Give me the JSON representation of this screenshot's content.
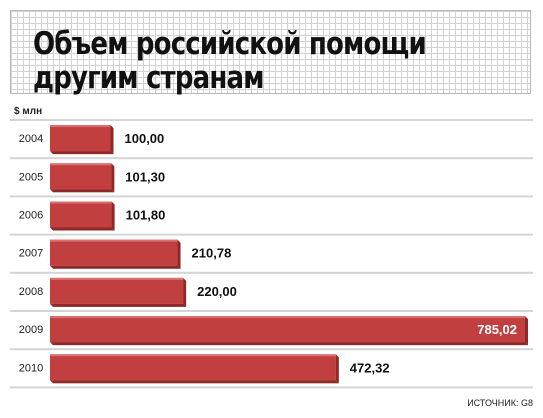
{
  "title_line1": "Объем российской помощи",
  "title_line2": "другим странам",
  "unit": "$ млн",
  "source": "ИСТОЧНИК: G8",
  "colors": {
    "bar": "#c1403f",
    "bar_top": "#d9706f",
    "bar_side": "#8f2826",
    "shadow": "#b3b3b3",
    "row_band": "#d4d4d4"
  },
  "chart_data": {
    "type": "bar",
    "orientation": "horizontal",
    "categories": [
      "2004",
      "2005",
      "2006",
      "2007",
      "2008",
      "2009",
      "2010"
    ],
    "values": [
      100.0,
      101.3,
      101.8,
      210.78,
      220.0,
      785.02,
      472.32
    ],
    "value_labels": [
      "100,00",
      "101,30",
      "101,80",
      "210,78",
      "220,00",
      "785,02",
      "472,32"
    ],
    "ylabel": "$ млн",
    "xlim": [
      0,
      785.02
    ],
    "grid": false,
    "legend": "none"
  }
}
